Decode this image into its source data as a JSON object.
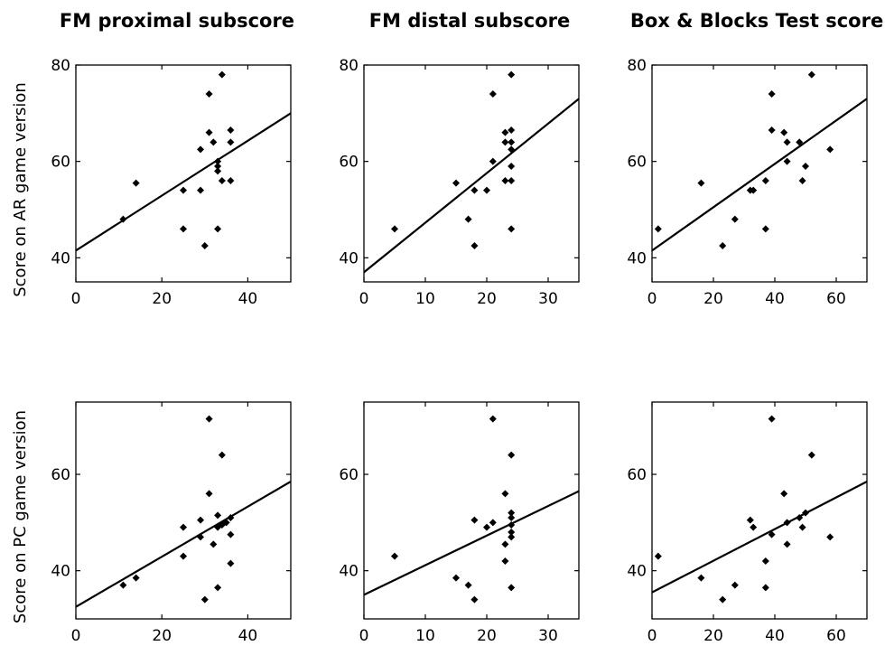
{
  "column_titles": [
    "FM proximal subscore",
    "FM distal subscore",
    "Box & Blocks Test score"
  ],
  "row_labels": [
    "Score on AR game version",
    "Score on PC game version"
  ],
  "colors": {
    "marker": "#000000",
    "line": "#000000",
    "axes": "#000000",
    "background": "#ffffff"
  },
  "chart_data": [
    {
      "type": "scatter",
      "title": "FM proximal subscore",
      "ylabel": "Score on AR game version",
      "xlabel": "",
      "xlim": [
        0,
        50
      ],
      "ylim": [
        35,
        80
      ],
      "xticks": [
        0,
        20,
        40
      ],
      "yticks": [
        40,
        60,
        80
      ],
      "grid": false,
      "points": [
        [
          11,
          48
        ],
        [
          14,
          55.5
        ],
        [
          25,
          54
        ],
        [
          25,
          46
        ],
        [
          29,
          54
        ],
        [
          29,
          62.5
        ],
        [
          30,
          42.5
        ],
        [
          31,
          74
        ],
        [
          31,
          66
        ],
        [
          32,
          64
        ],
        [
          33,
          58
        ],
        [
          33,
          59
        ],
        [
          33,
          60
        ],
        [
          33,
          46
        ],
        [
          34,
          78
        ],
        [
          34,
          56
        ],
        [
          36,
          56
        ],
        [
          36,
          64
        ],
        [
          36,
          66.5
        ]
      ],
      "fit_line": [
        [
          0,
          41.5
        ],
        [
          50,
          70
        ]
      ]
    },
    {
      "type": "scatter",
      "title": "FM distal subscore",
      "ylabel": "",
      "xlabel": "",
      "xlim": [
        0,
        35
      ],
      "ylim": [
        35,
        80
      ],
      "xticks": [
        0,
        10,
        20,
        30
      ],
      "yticks": [
        40,
        60,
        80
      ],
      "grid": false,
      "points": [
        [
          5,
          46
        ],
        [
          15,
          55.5
        ],
        [
          17,
          48
        ],
        [
          18,
          42.5
        ],
        [
          18,
          54
        ],
        [
          20,
          54
        ],
        [
          21,
          60
        ],
        [
          21,
          74
        ],
        [
          23,
          56
        ],
        [
          23,
          64
        ],
        [
          23,
          66
        ],
        [
          24,
          78
        ],
        [
          24,
          66.5
        ],
        [
          24,
          64
        ],
        [
          24,
          62.5
        ],
        [
          24,
          59
        ],
        [
          24,
          56
        ],
        [
          24,
          46
        ]
      ],
      "fit_line": [
        [
          0,
          37
        ],
        [
          35,
          73
        ]
      ]
    },
    {
      "type": "scatter",
      "title": "Box & Blocks Test score",
      "ylabel": "",
      "xlabel": "",
      "xlim": [
        0,
        70
      ],
      "ylim": [
        35,
        80
      ],
      "xticks": [
        0,
        20,
        40,
        60
      ],
      "yticks": [
        40,
        60,
        80
      ],
      "grid": false,
      "points": [
        [
          2,
          46
        ],
        [
          16,
          55.5
        ],
        [
          23,
          42.5
        ],
        [
          27,
          48
        ],
        [
          32,
          54
        ],
        [
          33,
          54
        ],
        [
          37,
          56
        ],
        [
          37,
          46
        ],
        [
          39,
          74
        ],
        [
          39,
          66.5
        ],
        [
          43,
          66
        ],
        [
          44,
          64
        ],
        [
          44,
          60
        ],
        [
          48,
          64
        ],
        [
          49,
          56
        ],
        [
          50,
          59
        ],
        [
          52,
          78
        ],
        [
          58,
          62.5
        ]
      ],
      "fit_line": [
        [
          0,
          41.5
        ],
        [
          70,
          73
        ]
      ]
    },
    {
      "type": "scatter",
      "title": "",
      "ylabel": "Score on PC game version",
      "xlabel": "",
      "xlim": [
        0,
        50
      ],
      "ylim": [
        30,
        75
      ],
      "xticks": [
        0,
        20,
        40
      ],
      "yticks": [
        40,
        60
      ],
      "grid": false,
      "points": [
        [
          11,
          37
        ],
        [
          14,
          38.5
        ],
        [
          25,
          49
        ],
        [
          25,
          43
        ],
        [
          29,
          47
        ],
        [
          29,
          50.5
        ],
        [
          30,
          34
        ],
        [
          31,
          71.5
        ],
        [
          31,
          56
        ],
        [
          32,
          45.5
        ],
        [
          33,
          49
        ],
        [
          33,
          51.5
        ],
        [
          34,
          49.5
        ],
        [
          33,
          36.5
        ],
        [
          34,
          64
        ],
        [
          35,
          50
        ],
        [
          36,
          41.5
        ],
        [
          36,
          47.5
        ],
        [
          36,
          51
        ]
      ],
      "fit_line": [
        [
          0,
          32.5
        ],
        [
          50,
          58.5
        ]
      ]
    },
    {
      "type": "scatter",
      "title": "",
      "ylabel": "",
      "xlabel": "",
      "xlim": [
        0,
        35
      ],
      "ylim": [
        30,
        75
      ],
      "xticks": [
        0,
        10,
        20,
        30
      ],
      "yticks": [
        40,
        60
      ],
      "grid": false,
      "points": [
        [
          5,
          43
        ],
        [
          15,
          38.5
        ],
        [
          17,
          37
        ],
        [
          18,
          34
        ],
        [
          18,
          50.5
        ],
        [
          20,
          49
        ],
        [
          21,
          71.5
        ],
        [
          21,
          50
        ],
        [
          23,
          56
        ],
        [
          23,
          45.5
        ],
        [
          23,
          42
        ],
        [
          24,
          64
        ],
        [
          24,
          52
        ],
        [
          24,
          51
        ],
        [
          24,
          49.5
        ],
        [
          24,
          48
        ],
        [
          24,
          47
        ],
        [
          24,
          36.5
        ]
      ],
      "fit_line": [
        [
          0,
          35
        ],
        [
          35,
          56.5
        ]
      ]
    },
    {
      "type": "scatter",
      "title": "",
      "ylabel": "",
      "xlabel": "",
      "xlim": [
        0,
        70
      ],
      "ylim": [
        30,
        75
      ],
      "xticks": [
        0,
        20,
        40,
        60
      ],
      "yticks": [
        40,
        60
      ],
      "grid": false,
      "points": [
        [
          2,
          43
        ],
        [
          16,
          38.5
        ],
        [
          23,
          34
        ],
        [
          27,
          37
        ],
        [
          32,
          50.5
        ],
        [
          33,
          49
        ],
        [
          37,
          42
        ],
        [
          37,
          36.5
        ],
        [
          39,
          71.5
        ],
        [
          39,
          47.5
        ],
        [
          43,
          56
        ],
        [
          44,
          45.5
        ],
        [
          44,
          50
        ],
        [
          48,
          51
        ],
        [
          49,
          49
        ],
        [
          50,
          52
        ],
        [
          52,
          64
        ],
        [
          58,
          47
        ]
      ],
      "fit_line": [
        [
          0,
          35.5
        ],
        [
          70,
          58.5
        ]
      ]
    }
  ]
}
